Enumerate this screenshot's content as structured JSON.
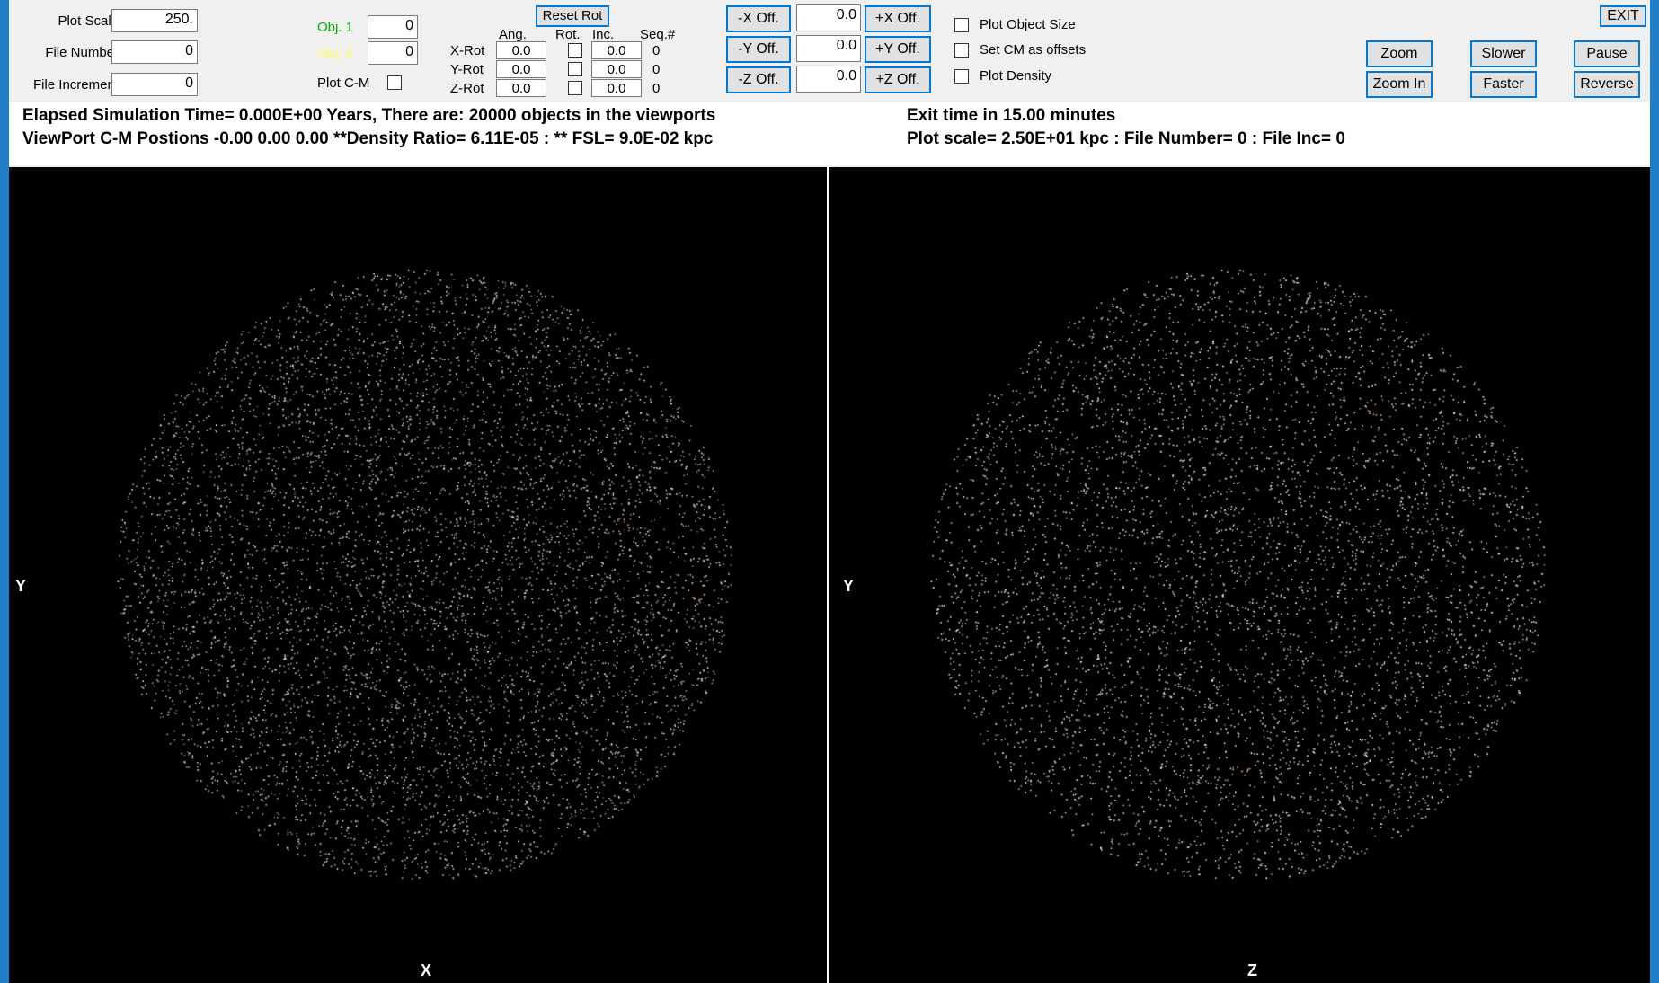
{
  "controls": {
    "plot_scale_label": "Plot Scale",
    "plot_scale_value": "250.",
    "file_number_label": "File Number",
    "file_number_value": "0",
    "file_increment_label": "File Increment",
    "file_increment_value": "0",
    "obj1_label": "Obj. 1",
    "obj1_value": "0",
    "obj2_label": "Obj. 2",
    "obj2_value": "0",
    "plot_cm_label": "Plot C-M",
    "reset_rot_label": "Reset Rot",
    "col_ang": "Ang.",
    "col_rot": "Rot.",
    "col_inc": "Inc.",
    "col_seq": "Seq.#",
    "rows": [
      {
        "label": "X-Rot",
        "ang": "0.0",
        "inc": "0.0",
        "seq": "0"
      },
      {
        "label": "Y-Rot",
        "ang": "0.0",
        "inc": "0.0",
        "seq": "0"
      },
      {
        "label": "Z-Rot",
        "ang": "0.0",
        "inc": "0.0",
        "seq": "0"
      }
    ],
    "offsets": [
      {
        "minus": "-X Off.",
        "value": "0.0",
        "plus": "+X Off."
      },
      {
        "minus": "-Y Off.",
        "value": "0.0",
        "plus": "+Y Off."
      },
      {
        "minus": "-Z Off.",
        "value": "0.0",
        "plus": "+Z Off."
      }
    ],
    "plot_object_size_label": "Plot Object Size",
    "set_cm_offsets_label": "Set CM as offsets",
    "plot_density_label": "Plot Density",
    "exit_label": "EXIT",
    "zoom_out_label": "Zoom Out",
    "zoom_in_label": "Zoom In",
    "slower_label": "Slower",
    "faster_label": "Faster",
    "pause_label": "Pause",
    "reverse_label": "Reverse",
    "obj1_color": "#00b000",
    "obj2_color": "#ffff60",
    "button_border_color": "#0078d7"
  },
  "info": {
    "line1_left": "Elapsed Simulation Time=  0.000E+00 Years,   There are: 20000 objects in the viewports",
    "line2_left": "ViewPort C-M Postions    -0.00       0.00       0.00     **Density Ratio= 6.11E-05 :  ** FSL=   9.0E-02 kpc",
    "line1_right": "Exit time in 15.00 minutes",
    "line2_right": "Plot scale=  2.50E+01 kpc  : File Number=          0  : File Inc=        0"
  },
  "viewports": [
    {
      "horizontal_axis": "X",
      "vertical_axis": "Y"
    },
    {
      "horizontal_axis": "Z",
      "vertical_axis": "Y"
    }
  ],
  "particles": {
    "count": 20000,
    "colors": [
      "#ffffff",
      "#ffffff",
      "#ffffff",
      "#c8c8ff",
      "#ffb4b4",
      "#ffffff"
    ]
  }
}
